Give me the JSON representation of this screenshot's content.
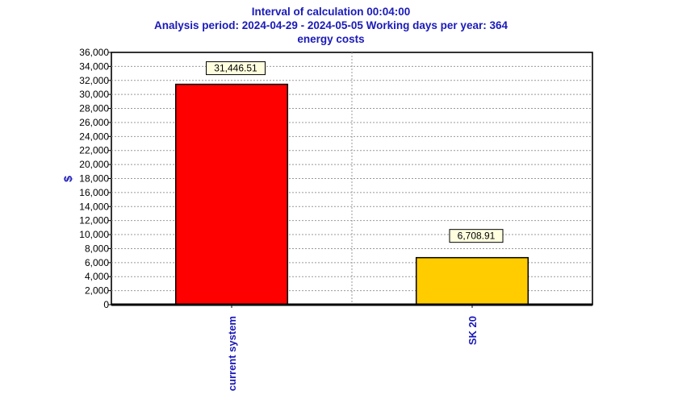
{
  "header": {
    "title_line1": "Interval of calculation 00:04:00",
    "title_line2": "Analysis period:  2024-04-29 - 2024-05-05   Working days per year: 364",
    "title_line3": "energy costs"
  },
  "chart_data": {
    "type": "bar",
    "title": "energy costs",
    "xlabel": "",
    "ylabel": "$",
    "categories": [
      "current system",
      "SK 20"
    ],
    "values": [
      31446.51,
      6708.91
    ],
    "value_labels": [
      "31,446.51",
      "6,708.91"
    ],
    "bar_colors": [
      "#ff0000",
      "#ffcc00"
    ],
    "ylim": [
      0,
      36000
    ],
    "yticks": [
      0,
      2000,
      4000,
      6000,
      8000,
      10000,
      12000,
      14000,
      16000,
      18000,
      20000,
      22000,
      24000,
      26000,
      28000,
      30000,
      32000,
      34000,
      36000
    ],
    "ytick_labels": [
      "0",
      "2,000",
      "4,000",
      "6,000",
      "8,000",
      "10,000",
      "12,000",
      "14,000",
      "16,000",
      "18,000",
      "20,000",
      "22,000",
      "24,000",
      "26,000",
      "28,000",
      "30,000",
      "32,000",
      "34,000",
      "36,000"
    ],
    "grid": true,
    "legend": "none"
  },
  "colors": {
    "title": "#1a1ab8",
    "label_box": "#ffffe0",
    "grid": "#999999"
  }
}
